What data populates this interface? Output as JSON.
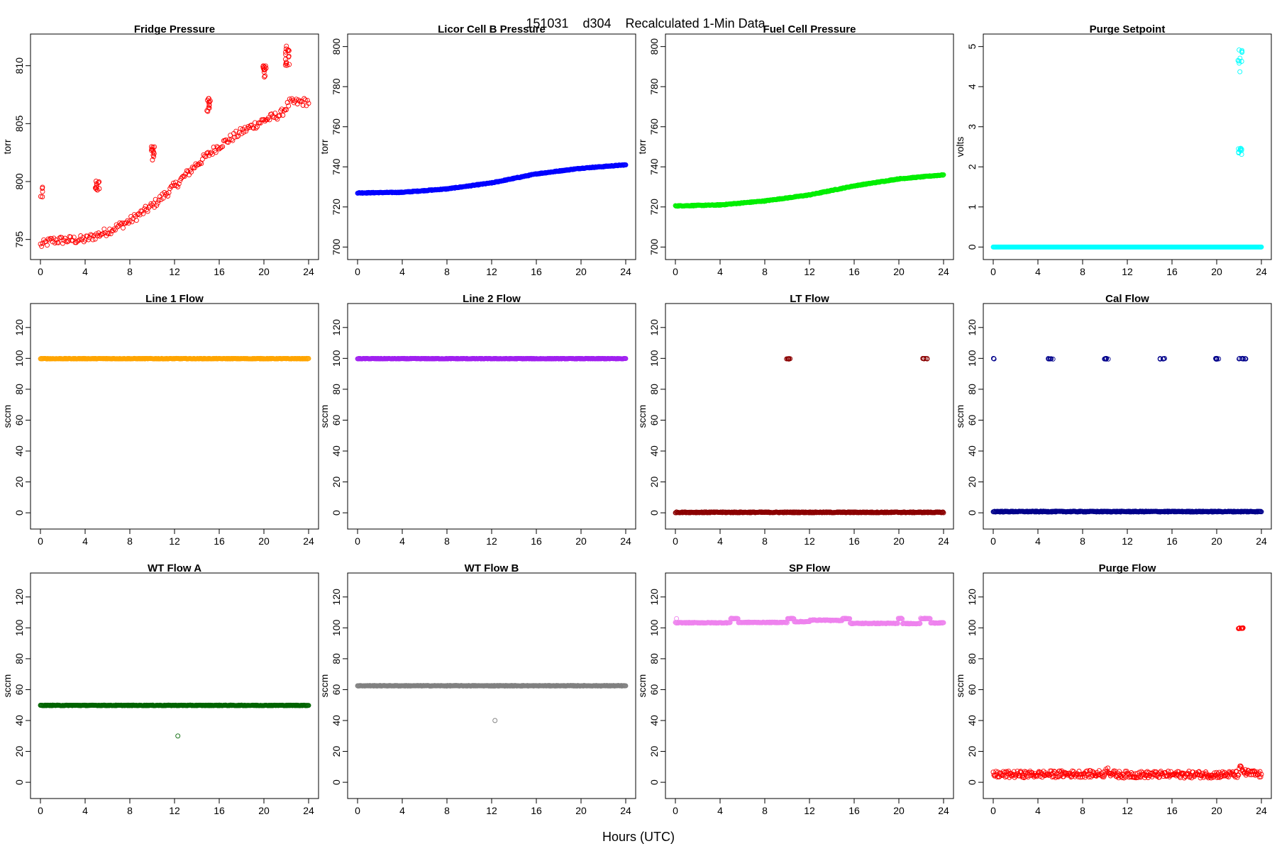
{
  "figure": {
    "title_parts": [
      "151031",
      "d304",
      "Recalculated 1-Min Data"
    ],
    "xlabel": "Hours (UTC)"
  },
  "chart_data": [
    {
      "type": "scatter",
      "title": "Fridge Pressure",
      "ylabel": "torr",
      "color": "#ff0000",
      "xlim": [
        0,
        24
      ],
      "ylim": [
        794,
        812
      ],
      "xticks": [
        0,
        4,
        8,
        12,
        16,
        20,
        24
      ],
      "yticks": [
        795,
        800,
        805,
        810
      ],
      "series": [
        {
          "kind": "ramp",
          "x": [
            0,
            1,
            4,
            6,
            8,
            10,
            12,
            14,
            16,
            18,
            20,
            21.5,
            22.3,
            24
          ],
          "y": [
            794.5,
            794.9,
            795,
            795.7,
            796.6,
            797.9,
            799.6,
            801.5,
            803.1,
            804.3,
            805.3,
            805.8,
            806.8,
            806.9
          ],
          "step": 0.1,
          "jitter": 0.35
        },
        {
          "kind": "cluster",
          "x": [
            0,
            0.2
          ],
          "y": [
            798.4,
            799.8
          ],
          "n": 5
        },
        {
          "kind": "cluster",
          "x": [
            4.9,
            5.3
          ],
          "y": [
            799.2,
            800.2
          ],
          "n": 12
        },
        {
          "kind": "cluster",
          "x": [
            9.9,
            10.2
          ],
          "y": [
            801.8,
            803.3
          ],
          "n": 12
        },
        {
          "kind": "cluster",
          "x": [
            14.9,
            15.2
          ],
          "y": [
            806,
            807.2
          ],
          "n": 12
        },
        {
          "kind": "cluster",
          "x": [
            19.9,
            20.2
          ],
          "y": [
            809,
            810
          ],
          "n": 12
        },
        {
          "kind": "cluster",
          "x": [
            21.9,
            22.3
          ],
          "y": [
            810,
            812
          ],
          "n": 16
        }
      ]
    },
    {
      "type": "scatter",
      "title": "Licor Cell B Pressure",
      "ylabel": "torr",
      "color": "#0000ff",
      "xlim": [
        0,
        24
      ],
      "ylim": [
        698,
        802
      ],
      "xticks": [
        0,
        4,
        8,
        12,
        16,
        20,
        24
      ],
      "yticks": [
        700,
        720,
        740,
        760,
        780,
        800
      ],
      "series": [
        {
          "kind": "ramp",
          "x": [
            0,
            4,
            8,
            12,
            16,
            20,
            24
          ],
          "y": [
            727,
            727.3,
            729,
            732,
            736.5,
            739.3,
            741
          ],
          "step": 0.05,
          "jitter": 0.2
        }
      ]
    },
    {
      "type": "scatter",
      "title": "Fuel Cell Pressure",
      "ylabel": "torr",
      "color": "#00ee00",
      "xlim": [
        0,
        24
      ],
      "ylim": [
        698,
        802
      ],
      "xticks": [
        0,
        4,
        8,
        12,
        16,
        20,
        24
      ],
      "yticks": [
        700,
        720,
        740,
        760,
        780,
        800
      ],
      "series": [
        {
          "kind": "ramp",
          "x": [
            0,
            4,
            8,
            12,
            16,
            20,
            24
          ],
          "y": [
            720.5,
            721,
            723,
            726,
            730.5,
            734,
            736
          ],
          "step": 0.05,
          "jitter": 0.2
        }
      ]
    },
    {
      "type": "scatter",
      "title": "Purge Setpoint",
      "ylabel": "volts",
      "color": "#00ffff",
      "xlim": [
        0,
        24
      ],
      "ylim": [
        -0.1,
        5.1
      ],
      "xticks": [
        0,
        4,
        8,
        12,
        16,
        20,
        24
      ],
      "yticks": [
        0,
        1,
        2,
        3,
        4,
        5
      ],
      "series": [
        {
          "kind": "ramp",
          "x": [
            0,
            24
          ],
          "y": [
            0,
            0
          ],
          "step": 0.05,
          "jitter": 0
        },
        {
          "kind": "cluster",
          "x": [
            21.9,
            22.3
          ],
          "y": [
            2.3,
            2.5
          ],
          "n": 10
        },
        {
          "kind": "cluster",
          "x": [
            21.9,
            22.3
          ],
          "y": [
            4.3,
            5
          ],
          "n": 10
        }
      ]
    },
    {
      "type": "scatter",
      "title": "Line 1 Flow",
      "ylabel": "sccm",
      "color": "#ffa500",
      "xlim": [
        0,
        24
      ],
      "ylim": [
        -5,
        130
      ],
      "xticks": [
        0,
        4,
        8,
        12,
        16,
        20,
        24
      ],
      "yticks": [
        0,
        20,
        40,
        60,
        80,
        100,
        120
      ],
      "series": [
        {
          "kind": "ramp",
          "x": [
            0,
            24
          ],
          "y": [
            99.8,
            99.8
          ],
          "step": 0.05,
          "jitter": 0.2
        }
      ]
    },
    {
      "type": "scatter",
      "title": "Line 2 Flow",
      "ylabel": "sccm",
      "color": "#a020f0",
      "xlim": [
        0,
        24
      ],
      "ylim": [
        -5,
        130
      ],
      "xticks": [
        0,
        4,
        8,
        12,
        16,
        20,
        24
      ],
      "yticks": [
        0,
        20,
        40,
        60,
        80,
        100,
        120
      ],
      "series": [
        {
          "kind": "ramp",
          "x": [
            0,
            24
          ],
          "y": [
            99.8,
            99.8
          ],
          "step": 0.05,
          "jitter": 0.2
        }
      ]
    },
    {
      "type": "scatter",
      "title": "LT Flow",
      "ylabel": "sccm",
      "color": "#8b0000",
      "xlim": [
        0,
        24
      ],
      "ylim": [
        -5,
        130
      ],
      "xticks": [
        0,
        4,
        8,
        12,
        16,
        20,
        24
      ],
      "yticks": [
        0,
        20,
        40,
        60,
        80,
        100,
        120
      ],
      "series": [
        {
          "kind": "ramp",
          "x": [
            0,
            24
          ],
          "y": [
            0.3,
            0.3
          ],
          "step": 0.05,
          "jitter": 0.3
        },
        {
          "kind": "cluster",
          "x": [
            9.9,
            10.3
          ],
          "y": [
            99.5,
            100
          ],
          "n": 8
        },
        {
          "kind": "cluster",
          "x": [
            22.1,
            22.6
          ],
          "y": [
            99.5,
            100
          ],
          "n": 8
        }
      ]
    },
    {
      "type": "scatter",
      "title": "Cal Flow",
      "ylabel": "sccm",
      "color": "#00008b",
      "xlim": [
        0,
        24
      ],
      "ylim": [
        -5,
        130
      ],
      "xticks": [
        0,
        4,
        8,
        12,
        16,
        20,
        24
      ],
      "yticks": [
        0,
        20,
        40,
        60,
        80,
        100,
        120
      ],
      "series": [
        {
          "kind": "ramp",
          "x": [
            0,
            24
          ],
          "y": [
            0.8,
            0.8
          ],
          "step": 0.05,
          "jitter": 0.3
        },
        {
          "kind": "cluster",
          "x": [
            0,
            0.2
          ],
          "y": [
            99.5,
            100
          ],
          "n": 3
        },
        {
          "kind": "cluster",
          "x": [
            4.9,
            5.4
          ],
          "y": [
            99.5,
            100
          ],
          "n": 8
        },
        {
          "kind": "cluster",
          "x": [
            9.9,
            10.3
          ],
          "y": [
            99.5,
            100
          ],
          "n": 8
        },
        {
          "kind": "cluster",
          "x": [
            14.9,
            15.4
          ],
          "y": [
            99.5,
            100
          ],
          "n": 8
        },
        {
          "kind": "cluster",
          "x": [
            19.9,
            20.3
          ],
          "y": [
            99.5,
            100
          ],
          "n": 8
        },
        {
          "kind": "cluster",
          "x": [
            21.9,
            22.6
          ],
          "y": [
            99.5,
            100
          ],
          "n": 10
        }
      ]
    },
    {
      "type": "scatter",
      "title": "WT Flow A",
      "ylabel": "sccm",
      "color": "#006400",
      "xlim": [
        0,
        24
      ],
      "ylim": [
        -5,
        130
      ],
      "xticks": [
        0,
        4,
        8,
        12,
        16,
        20,
        24
      ],
      "yticks": [
        0,
        20,
        40,
        60,
        80,
        100,
        120
      ],
      "series": [
        {
          "kind": "ramp",
          "x": [
            0,
            24
          ],
          "y": [
            49.8,
            49.8
          ],
          "step": 0.05,
          "jitter": 0.2
        },
        {
          "kind": "points",
          "x": [
            12.3
          ],
          "y": [
            30
          ]
        }
      ]
    },
    {
      "type": "scatter",
      "title": "WT Flow B",
      "ylabel": "sccm",
      "color": "#808080",
      "xlim": [
        0,
        24
      ],
      "ylim": [
        -5,
        130
      ],
      "xticks": [
        0,
        4,
        8,
        12,
        16,
        20,
        24
      ],
      "yticks": [
        0,
        20,
        40,
        60,
        80,
        100,
        120
      ],
      "series": [
        {
          "kind": "ramp",
          "x": [
            0,
            24
          ],
          "y": [
            62.5,
            62.5
          ],
          "step": 0.05,
          "jitter": 0.2
        },
        {
          "kind": "points",
          "x": [
            12.3
          ],
          "y": [
            40
          ]
        }
      ]
    },
    {
      "type": "scatter",
      "title": "SP Flow",
      "ylabel": "sccm",
      "color": "#ee82ee",
      "xlim": [
        0,
        24
      ],
      "ylim": [
        -5,
        130
      ],
      "xticks": [
        0,
        4,
        8,
        12,
        16,
        20,
        24
      ],
      "yticks": [
        0,
        20,
        40,
        60,
        80,
        100,
        120
      ],
      "series": [
        {
          "kind": "ramp",
          "x": [
            0,
            4.9,
            4.91,
            5.6,
            5.61,
            10,
            10.01,
            10.6,
            10.61,
            12,
            12.01,
            13.8,
            13.81,
            14.9,
            14.91,
            15.6,
            15.61,
            19.9,
            19.91,
            20.3,
            20.31,
            21.9,
            21.91,
            22.8,
            22.81,
            24
          ],
          "y": [
            103.3,
            103.3,
            106,
            106,
            103.5,
            103.5,
            106,
            106,
            104,
            104,
            105,
            105,
            104.8,
            104.8,
            106,
            106,
            102.9,
            102.9,
            106,
            106,
            102.8,
            102.8,
            106,
            106,
            103.2,
            103.2
          ],
          "step": 0.05,
          "jitter": 0.25
        },
        {
          "kind": "points",
          "x": [
            0.1
          ],
          "y": [
            106
          ]
        }
      ]
    },
    {
      "type": "scatter",
      "title": "Purge Flow",
      "ylabel": "sccm",
      "color": "#ff0000",
      "xlim": [
        0,
        24
      ],
      "ylim": [
        -5,
        130
      ],
      "xticks": [
        0,
        4,
        8,
        12,
        16,
        20,
        24
      ],
      "yticks": [
        0,
        20,
        40,
        60,
        80,
        100,
        120
      ],
      "series": [
        {
          "kind": "ramp",
          "x": [
            0,
            10,
            10.2,
            10.5,
            11,
            21.9,
            22.1,
            22.6,
            24
          ],
          "y": [
            5,
            5.5,
            9,
            6,
            5,
            5,
            9,
            6,
            5
          ],
          "step": 0.06,
          "jitter": 2.2
        },
        {
          "kind": "cluster",
          "x": [
            21.9,
            22.4
          ],
          "y": [
            99.5,
            100
          ],
          "n": 10
        }
      ]
    }
  ]
}
